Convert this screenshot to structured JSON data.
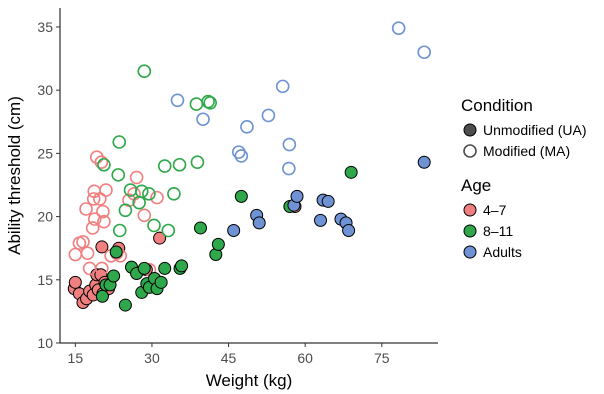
{
  "chart_data": {
    "type": "scatter",
    "xlabel": "Weight (kg)",
    "ylabel": "Ability threshold (cm)",
    "xlim": [
      12,
      86
    ],
    "ylim": [
      10,
      36.5
    ],
    "xticks": [
      15,
      30,
      45,
      60,
      75
    ],
    "yticks": [
      10,
      15,
      20,
      25,
      30,
      35
    ],
    "grid": false,
    "legend_placement": "right",
    "legends": [
      {
        "title": "Condition",
        "entries": [
          {
            "label": "Unmodified (UA)",
            "marker": "filled",
            "color": "#4d4d4d"
          },
          {
            "label": "Modified (MA)",
            "marker": "open",
            "color": "#4d4d4d"
          }
        ]
      },
      {
        "title": "Age",
        "entries": [
          {
            "label": "4–7",
            "color": "#f08080"
          },
          {
            "label": "8–11",
            "color": "#2ea84a"
          },
          {
            "label": "Adults",
            "color": "#6e92d4"
          }
        ]
      }
    ],
    "series": [
      {
        "age": "4–7",
        "condition": "Unmodified (UA)",
        "color": "#f08080",
        "filled": true,
        "points": [
          [
            14.8,
            14.3
          ],
          [
            15,
            14.8
          ],
          [
            15.8,
            13.9
          ],
          [
            16.5,
            13.2
          ],
          [
            17.2,
            13.5
          ],
          [
            17.8,
            14.1
          ],
          [
            18.5,
            13.8
          ],
          [
            19,
            14.6
          ],
          [
            19.2,
            15.4
          ],
          [
            19.5,
            14.2
          ],
          [
            20,
            15.4
          ],
          [
            20.4,
            13.9
          ],
          [
            20.8,
            14.8
          ],
          [
            21.5,
            14.3
          ],
          [
            20.2,
            17.6
          ],
          [
            23.5,
            17.5
          ],
          [
            28.9,
            15.8
          ],
          [
            31.5,
            18.3
          ],
          [
            58,
            20.8
          ]
        ]
      },
      {
        "age": "4–7",
        "condition": "Modified (MA)",
        "color": "#f08080",
        "filled": false,
        "points": [
          [
            15,
            17
          ],
          [
            15.8,
            17.9
          ],
          [
            16.5,
            18
          ],
          [
            17.1,
            20.6
          ],
          [
            17.4,
            17.1
          ],
          [
            17.8,
            15.9
          ],
          [
            18.4,
            19.1
          ],
          [
            18.6,
            21.4
          ],
          [
            18.8,
            19.8
          ],
          [
            18.7,
            22
          ],
          [
            19.2,
            24.7
          ],
          [
            19.8,
            21.4
          ],
          [
            20.1,
            24.3
          ],
          [
            20.4,
            20.4
          ],
          [
            20.6,
            19.6
          ],
          [
            20.2,
            15.9
          ],
          [
            21,
            22.1
          ],
          [
            22,
            16.9
          ],
          [
            23.1,
            17.1
          ],
          [
            23.8,
            16.9
          ],
          [
            25.5,
            21.3
          ],
          [
            26.5,
            21.8
          ],
          [
            27,
            23.1
          ],
          [
            28.5,
            20.1
          ],
          [
            31,
            21.5
          ],
          [
            29.5,
            15.8
          ]
        ]
      },
      {
        "age": "8–11",
        "condition": "Unmodified (UA)",
        "color": "#2ea84a",
        "filled": true,
        "points": [
          [
            20.3,
            13.7
          ],
          [
            21,
            14.6
          ],
          [
            21.8,
            14.6
          ],
          [
            22.5,
            15.3
          ],
          [
            23,
            17.2
          ],
          [
            24.8,
            13
          ],
          [
            26,
            16
          ],
          [
            27,
            15.5
          ],
          [
            28,
            14
          ],
          [
            28.5,
            15.9
          ],
          [
            29,
            14.7
          ],
          [
            29.5,
            14.4
          ],
          [
            30.5,
            15.1
          ],
          [
            31,
            14.3
          ],
          [
            31.8,
            14.8
          ],
          [
            32.5,
            15.9
          ],
          [
            35.5,
            15.9
          ],
          [
            35.8,
            16.1
          ],
          [
            39.5,
            19.1
          ],
          [
            42.5,
            17
          ],
          [
            43,
            17.8
          ],
          [
            47.5,
            21.6
          ],
          [
            57,
            20.8
          ],
          [
            69,
            23.5
          ]
        ]
      },
      {
        "age": "8–11",
        "condition": "Modified (MA)",
        "color": "#2ea84a",
        "filled": false,
        "points": [
          [
            20.6,
            24.1
          ],
          [
            23.4,
            23.3
          ],
          [
            23.6,
            25.9
          ],
          [
            23.7,
            18.9
          ],
          [
            24.8,
            20.5
          ],
          [
            25.8,
            22.1
          ],
          [
            27.5,
            21.1
          ],
          [
            28,
            22
          ],
          [
            28.5,
            31.5
          ],
          [
            29.4,
            21.8
          ],
          [
            30.4,
            19.3
          ],
          [
            32.5,
            24
          ],
          [
            33.2,
            18.9
          ],
          [
            34.3,
            21.8
          ],
          [
            35.4,
            24.1
          ],
          [
            38.7,
            28.9
          ],
          [
            38.9,
            24.3
          ],
          [
            41,
            29.1
          ],
          [
            41.4,
            29
          ]
        ]
      },
      {
        "age": "Adults",
        "condition": "Unmodified (UA)",
        "color": "#6e92d4",
        "filled": true,
        "points": [
          [
            46,
            18.9
          ],
          [
            50.5,
            20.1
          ],
          [
            51,
            19.5
          ],
          [
            57.8,
            20.9
          ],
          [
            58.4,
            21.6
          ],
          [
            63,
            19.7
          ],
          [
            63.5,
            21.3
          ],
          [
            64.5,
            21.2
          ],
          [
            67,
            19.8
          ],
          [
            68,
            19.5
          ],
          [
            68.5,
            18.9
          ],
          [
            83.3,
            24.3
          ]
        ]
      },
      {
        "age": "Adults",
        "condition": "Modified (MA)",
        "color": "#6e92d4",
        "filled": false,
        "points": [
          [
            35,
            29.2
          ],
          [
            40,
            27.7
          ],
          [
            47,
            25.1
          ],
          [
            47.5,
            24.8
          ],
          [
            48.6,
            27.1
          ],
          [
            52.8,
            28
          ],
          [
            55.6,
            30.3
          ],
          [
            56.9,
            25.7
          ],
          [
            56.8,
            23.8
          ],
          [
            78.3,
            34.9
          ],
          [
            83.3,
            33
          ]
        ]
      }
    ]
  }
}
